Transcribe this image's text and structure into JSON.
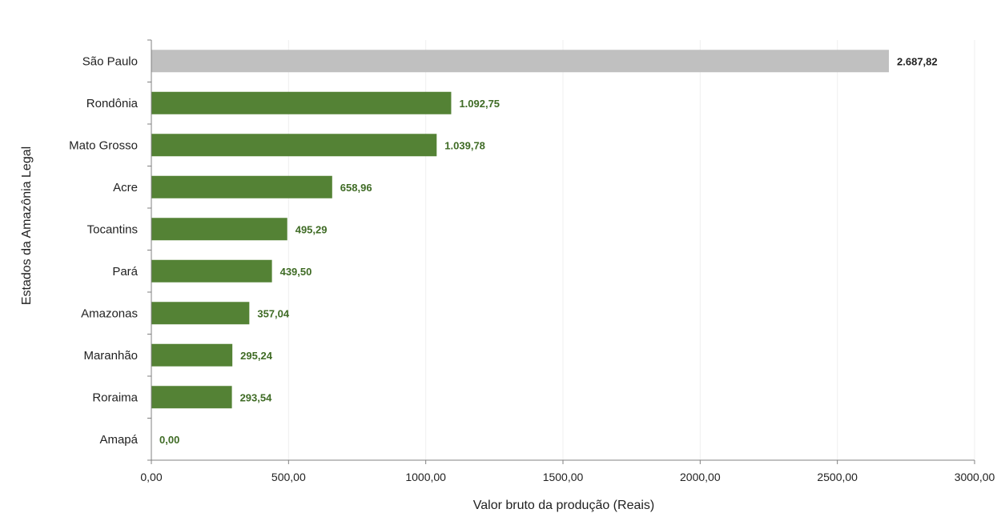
{
  "chart_data": {
    "type": "bar",
    "orientation": "horizontal",
    "categories": [
      "São Paulo",
      "Rondônia",
      "Mato Grosso",
      "Acre",
      "Tocantins",
      "Pará",
      "Amazonas",
      "Maranhão",
      "Roraima",
      "Amapá"
    ],
    "values": [
      2687.82,
      1092.75,
      1039.78,
      658.96,
      495.29,
      439.5,
      357.04,
      295.24,
      293.54,
      0.0
    ],
    "value_labels": [
      "2.687,82",
      "1.092,75",
      "1.039,78",
      "658,96",
      "495,29",
      "439,50",
      "357,04",
      "295,24",
      "293,54",
      "0,00"
    ],
    "xlabel": "Valor bruto da produção (Reais)",
    "ylabel": "Estados da Amazônia Legal",
    "xlim": [
      0,
      3000
    ],
    "xticks": [
      0,
      500,
      1000,
      1500,
      2000,
      2500,
      3000
    ],
    "xtick_labels": [
      "0,00",
      "500,00",
      "1000,00",
      "1500,00",
      "2000,00",
      "2500,00",
      "3000,00"
    ],
    "grid": "vertical",
    "colors": {
      "highlight_bar": "#c0c0c0",
      "bar": "#548235",
      "label": "#3f6b25",
      "highlight_label": "#222222",
      "gridline": "#efefef",
      "axis": "#808080"
    }
  }
}
